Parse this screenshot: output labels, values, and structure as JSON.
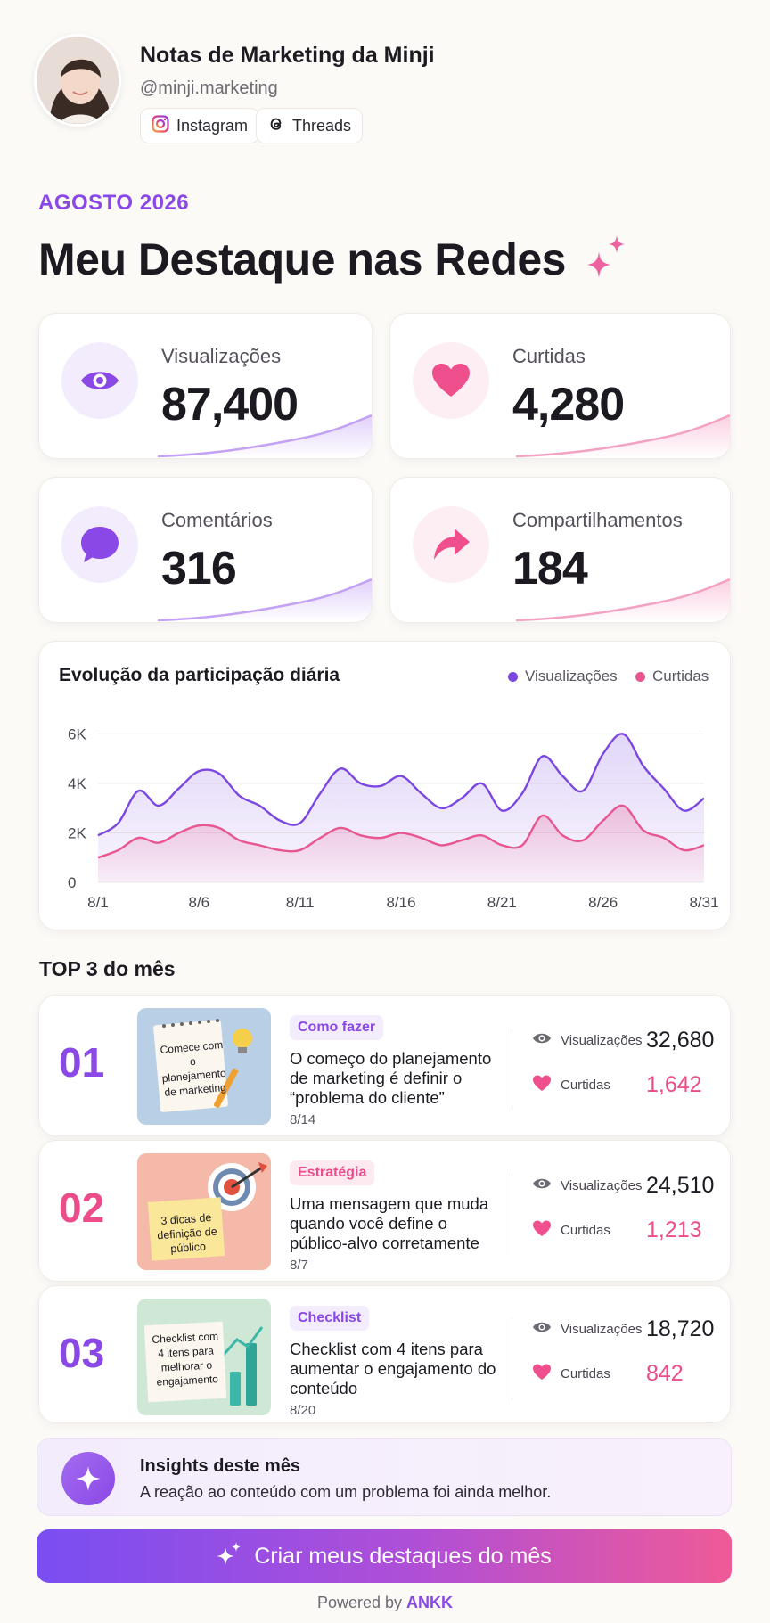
{
  "profile": {
    "name": "Notas de Marketing da Minji",
    "handle": "@minji.marketing",
    "links": [
      {
        "label": "Instagram",
        "icon": "instagram-icon"
      },
      {
        "label": "Threads",
        "icon": "threads-icon"
      }
    ]
  },
  "header": {
    "month": "AGOSTO 2026",
    "title": "Meu Destaque nas Redes"
  },
  "metrics": [
    {
      "label": "Visualizações",
      "value": "87,400",
      "icon": "eye-icon",
      "accent": "#8a48e6"
    },
    {
      "label": "Curtidas",
      "value": "4,280",
      "icon": "heart-icon",
      "accent": "#ef4f8c"
    },
    {
      "label": "Comentários",
      "value": "316",
      "icon": "chat-bubble-icon",
      "accent": "#8a48e6"
    },
    {
      "label": "Compartilhamentos",
      "value": "184",
      "icon": "share-arrow-icon",
      "accent": "#ef4f8c"
    }
  ],
  "chart_title": "Evolução da participação diária",
  "chart_data": {
    "type": "area",
    "x": [
      "8/1",
      "8/2",
      "8/3",
      "8/4",
      "8/5",
      "8/6",
      "8/7",
      "8/8",
      "8/9",
      "8/10",
      "8/11",
      "8/12",
      "8/13",
      "8/14",
      "8/15",
      "8/16",
      "8/17",
      "8/18",
      "8/19",
      "8/20",
      "8/21",
      "8/22",
      "8/23",
      "8/24",
      "8/25",
      "8/26",
      "8/27",
      "8/28",
      "8/29",
      "8/30",
      "8/31"
    ],
    "x_ticks": [
      "8/1",
      "8/6",
      "8/11",
      "8/16",
      "8/21",
      "8/26",
      "8/31"
    ],
    "y_ticks": [
      "0",
      "2K",
      "4K",
      "6K"
    ],
    "ylim": [
      0,
      6200
    ],
    "series": [
      {
        "name": "Visualizações",
        "color": "#7b47e0",
        "values": [
          1900,
          2400,
          3700,
          3100,
          3800,
          4500,
          4400,
          3500,
          3100,
          2500,
          2400,
          3600,
          4600,
          4000,
          3900,
          4300,
          3600,
          3000,
          3400,
          4000,
          2900,
          3600,
          5100,
          4300,
          3700,
          5200,
          6000,
          4700,
          3800,
          2900,
          3400
        ]
      },
      {
        "name": "Curtidas",
        "color": "#e8568f",
        "values": [
          1000,
          1300,
          1800,
          1600,
          2000,
          2300,
          2200,
          1700,
          1500,
          1300,
          1300,
          1800,
          2200,
          1900,
          1800,
          2000,
          1800,
          1500,
          1700,
          1900,
          1500,
          1500,
          2700,
          1900,
          1700,
          2500,
          3100,
          2100,
          1800,
          1300,
          1500
        ]
      }
    ],
    "legend": "top-right",
    "grid": true
  },
  "top_heading": "TOP 3 do mês",
  "top_items": [
    {
      "rank": "01",
      "tag": "Como fazer",
      "title": "O começo do planejamento de marketing é definir o “problema do cliente”",
      "date": "8/14",
      "thumb_text": "Comece com o planejamento de marketing",
      "views_label": "Visualizações",
      "views": "32,680",
      "likes_label": "Curtidas",
      "likes": "1,642"
    },
    {
      "rank": "02",
      "tag": "Estratégia",
      "title": "Uma mensagem que muda quando você define o público-alvo corretamente",
      "date": "8/7",
      "thumb_text": "3 dicas de definição de público",
      "views_label": "Visualizações",
      "views": "24,510",
      "likes_label": "Curtidas",
      "likes": "1,213"
    },
    {
      "rank": "03",
      "tag": "Checklist",
      "title": "Checklist com 4 itens para aumentar o engajamento do conteúdo",
      "date": "8/20",
      "thumb_text": "Checklist com 4 itens para melhorar o engajamento",
      "views_label": "Visualizações",
      "views": "18,720",
      "likes_label": "Curtidas",
      "likes": "842"
    }
  ],
  "insight": {
    "title": "Insights deste mês",
    "text": "A reação ao conteúdo com um problema foi ainda melhor."
  },
  "cta_label": "Criar meus destaques do mês",
  "footer": {
    "prefix": "Powered by",
    "brand": "ANKK"
  }
}
